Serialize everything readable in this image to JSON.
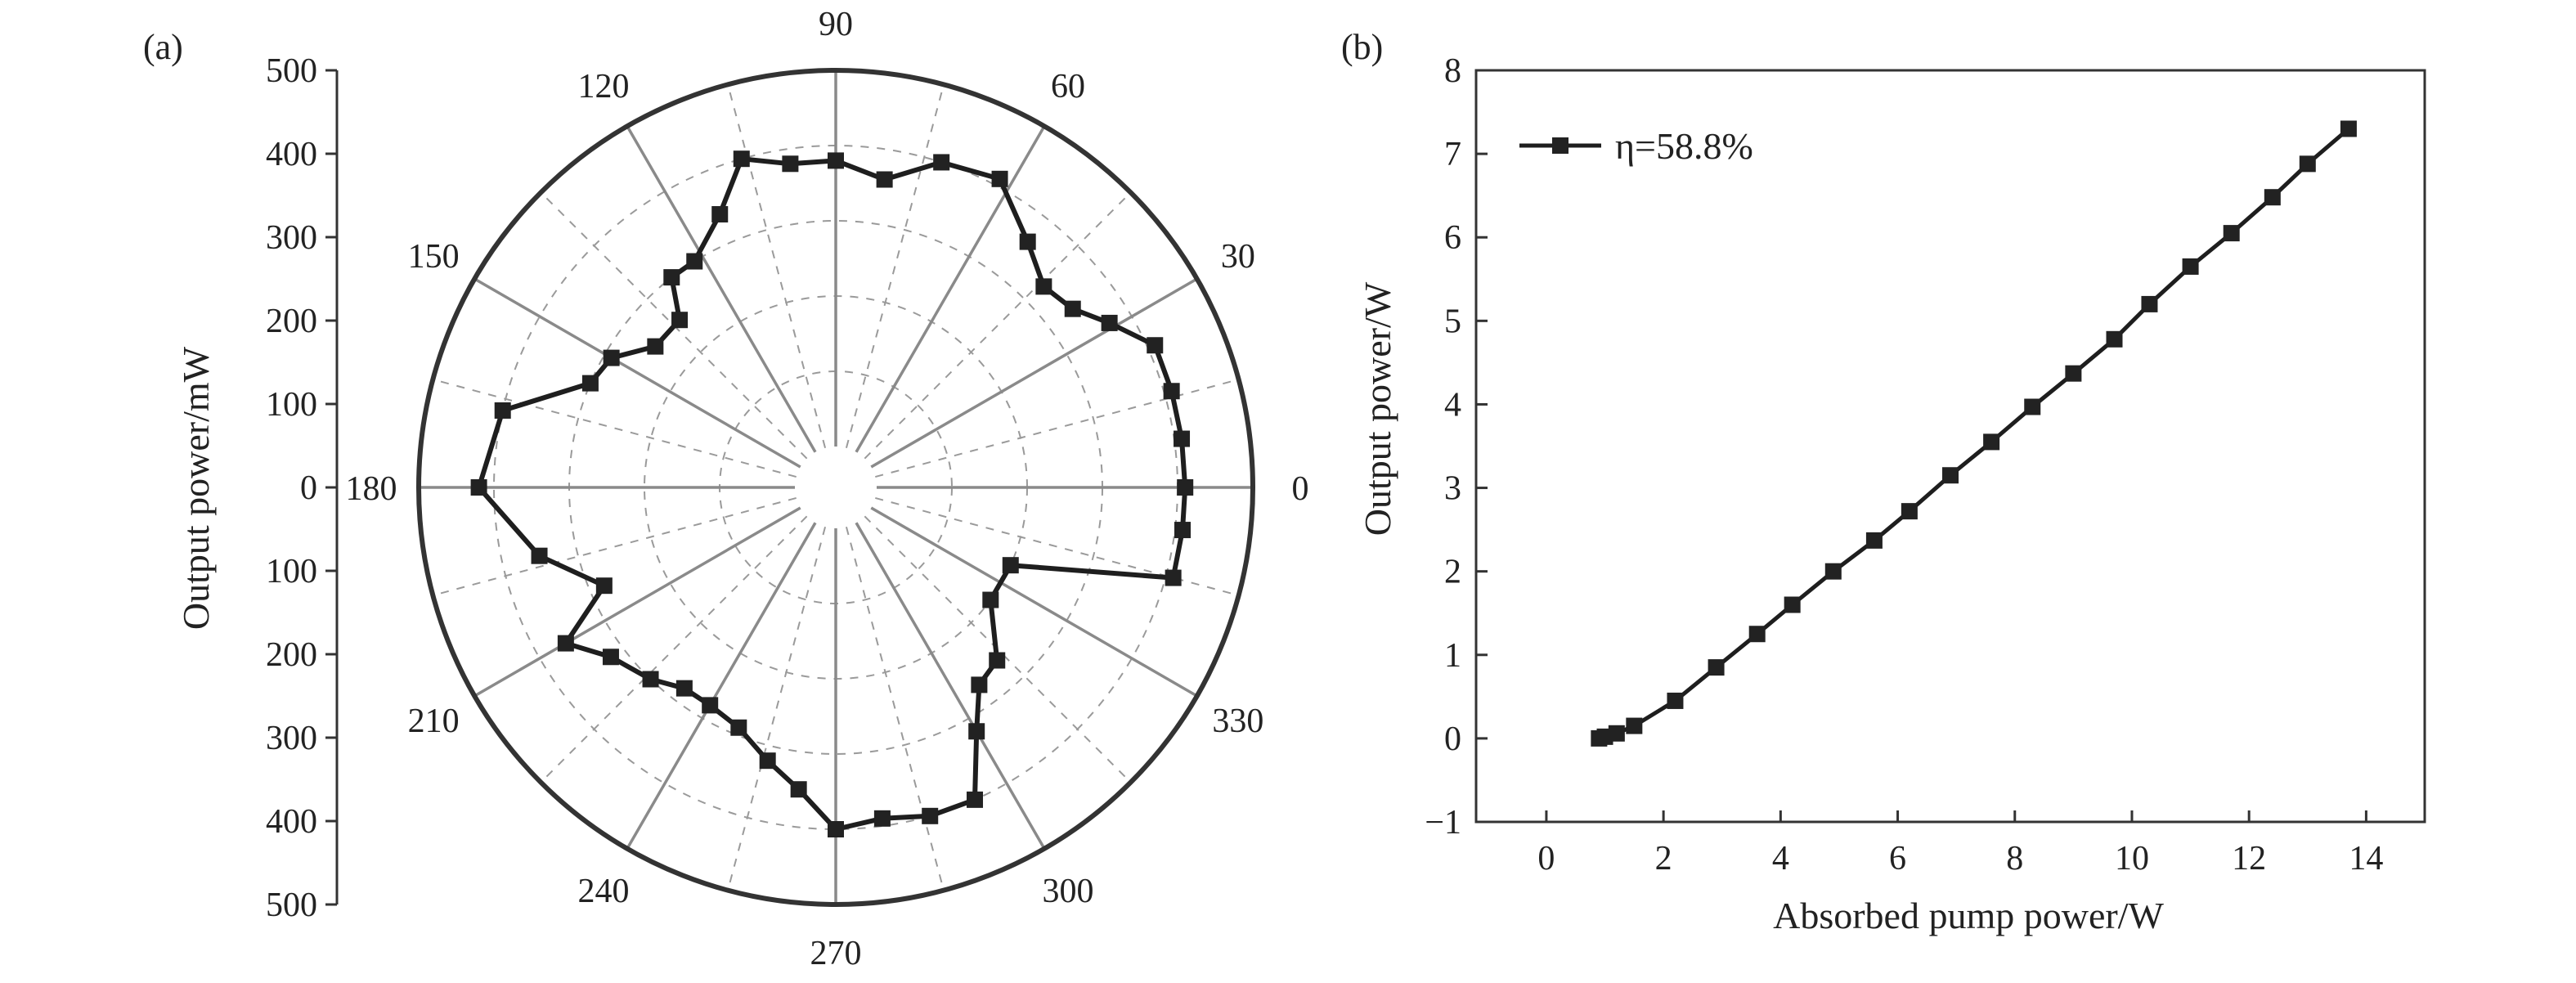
{
  "colors": {
    "line": "#1e1e1e",
    "marker": "#222222",
    "grid": "#9a9a9a",
    "axis": "#333333",
    "background": "#ffffff"
  },
  "chart_data": [
    {
      "panel_label": "(a)",
      "type": "polar",
      "ylabel": "Output power/mW",
      "radial_range": [
        0,
        500
      ],
      "radial_ticks": [
        500,
        400,
        300,
        200,
        100,
        0,
        100,
        200,
        300,
        400,
        500
      ],
      "angle_ticks": [
        {
          "angle": 0,
          "label": "0"
        },
        {
          "angle": 30,
          "label": "30"
        },
        {
          "angle": 60,
          "label": "60"
        },
        {
          "angle": 90,
          "label": "90"
        },
        {
          "angle": 120,
          "label": "120"
        },
        {
          "angle": 150,
          "label": "150"
        },
        {
          "angle": 180,
          "label": "180"
        },
        {
          "angle": 210,
          "label": "210"
        },
        {
          "angle": 240,
          "label": "240"
        },
        {
          "angle": 270,
          "label": "270"
        },
        {
          "angle": 300,
          "label": "300"
        },
        {
          "angle": 330,
          "label": "330"
        }
      ],
      "grid": true,
      "series": [
        {
          "angles": [
            0,
            8,
            16,
            24,
            31,
            37,
            44,
            52,
            62,
            72,
            81,
            90,
            98,
            106,
            113,
            122,
            128,
            133,
            142,
            150,
            157,
            167,
            180,
            193,
            203,
            210,
            217,
            226,
            233,
            240,
            248,
            256,
            263,
            270,
            278,
            286,
            294,
            300,
            306,
            313,
            324,
            336,
            345,
            353
          ],
          "values": [
            410,
            410,
            410,
            410,
            370,
            340,
            330,
            360,
            410,
            400,
            360,
            380,
            380,
            400,
            340,
            300,
            300,
            250,
            250,
            290,
            300,
            400,
            420,
            350,
            280,
            360,
            320,
            300,
            280,
            280,
            290,
            320,
            350,
            400,
            390,
            400,
            400,
            320,
            270,
            260,
            200,
            200,
            410,
            410
          ]
        }
      ]
    },
    {
      "panel_label": "(b)",
      "type": "line",
      "xlabel": "Absorbed pump power/W",
      "ylabel": "Output power/W",
      "xlim": [
        -1.2,
        15.0
      ],
      "ylim": [
        -1,
        8
      ],
      "xticks": [
        0,
        2,
        4,
        6,
        8,
        10,
        12,
        14
      ],
      "yticks": [
        -1,
        0,
        1,
        2,
        3,
        4,
        5,
        6,
        7,
        8
      ],
      "legend": {
        "position": "top-left"
      },
      "series": [
        {
          "name": "η=58.8%",
          "x": [
            0.9,
            1.0,
            1.2,
            1.5,
            2.2,
            2.9,
            3.6,
            4.2,
            4.9,
            5.6,
            6.2,
            6.9,
            7.6,
            8.3,
            9.0,
            9.7,
            10.3,
            11.0,
            11.7,
            12.4,
            13.0,
            13.7
          ],
          "y": [
            0.0,
            0.02,
            0.06,
            0.15,
            0.45,
            0.85,
            1.25,
            1.6,
            2.0,
            2.37,
            2.72,
            3.15,
            3.55,
            3.97,
            4.37,
            4.78,
            5.2,
            5.65,
            6.05,
            6.48,
            6.88,
            7.3
          ]
        }
      ]
    }
  ]
}
